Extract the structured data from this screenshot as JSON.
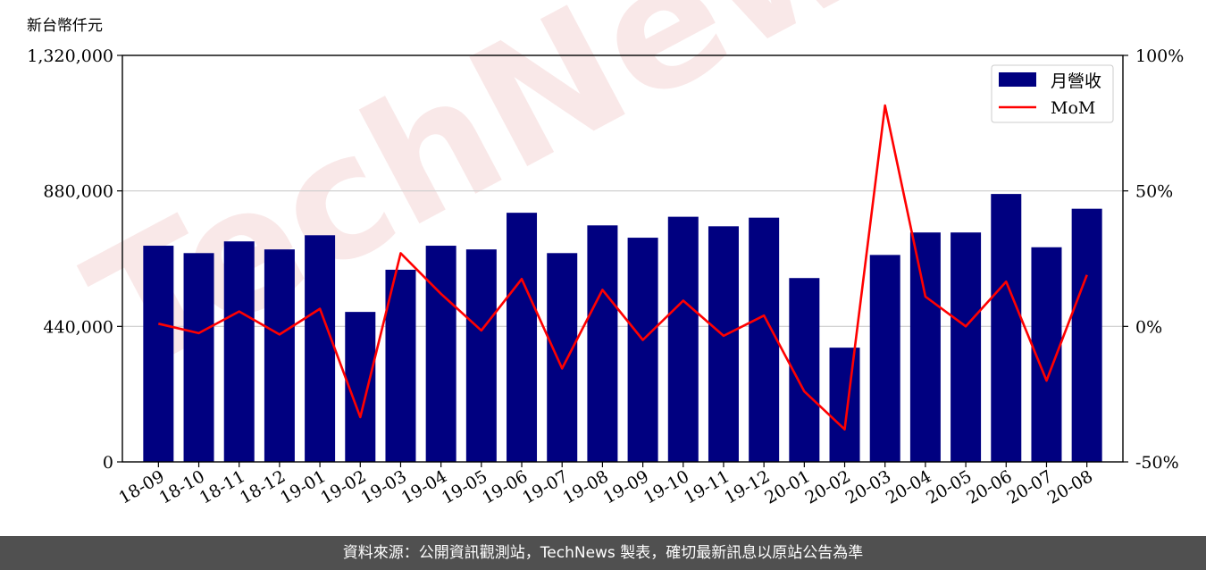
{
  "chart_data": {
    "type": "bar",
    "y_unit_label": "新台幣仟元",
    "categories": [
      "18-09",
      "18-10",
      "18-11",
      "18-12",
      "19-01",
      "19-02",
      "19-03",
      "19-04",
      "19-05",
      "19-06",
      "19-07",
      "19-08",
      "19-09",
      "19-10",
      "19-11",
      "19-12",
      "20-01",
      "20-02",
      "20-03",
      "20-04",
      "20-05",
      "20-06",
      "20-07",
      "20-08"
    ],
    "series": [
      {
        "name": "月營收",
        "axis": "left",
        "type": "bar",
        "color": "#000080",
        "values": [
          702000,
          678000,
          716000,
          690000,
          736000,
          487000,
          624000,
          702000,
          690000,
          809000,
          678000,
          768000,
          728000,
          796000,
          765000,
          793000,
          597000,
          371000,
          672000,
          745000,
          745000,
          870000,
          697000,
          822000
        ]
      },
      {
        "name": "MoM",
        "axis": "right",
        "type": "line",
        "color": "#ff0000",
        "values": [
          1.0,
          -2.5,
          5.5,
          -3.0,
          6.5,
          -33.5,
          27.0,
          12.0,
          -1.5,
          17.5,
          -15.5,
          13.5,
          -5.0,
          9.5,
          -3.5,
          4.0,
          -24.0,
          -38.0,
          81.5,
          11.0,
          0.0,
          16.5,
          -20.0,
          19.0
        ]
      }
    ],
    "left_axis": {
      "ylim": [
        0,
        1320000
      ],
      "ticks": [
        0,
        440000,
        880000,
        1320000
      ],
      "tick_labels": [
        "0",
        "440,000",
        "880,000",
        "1,320,000"
      ]
    },
    "right_axis": {
      "ylim": [
        -50,
        100
      ],
      "ticks": [
        -50,
        0,
        50,
        100
      ],
      "tick_labels": [
        "-50%",
        "0%",
        "50%",
        "100%"
      ]
    },
    "grid": "horizontal",
    "legend_position": "top-right",
    "watermark": "TechNews"
  },
  "footer": {
    "text": "資料來源：公開資訊觀測站，TechNews 製表，確切最新訊息以原站公告為準"
  }
}
